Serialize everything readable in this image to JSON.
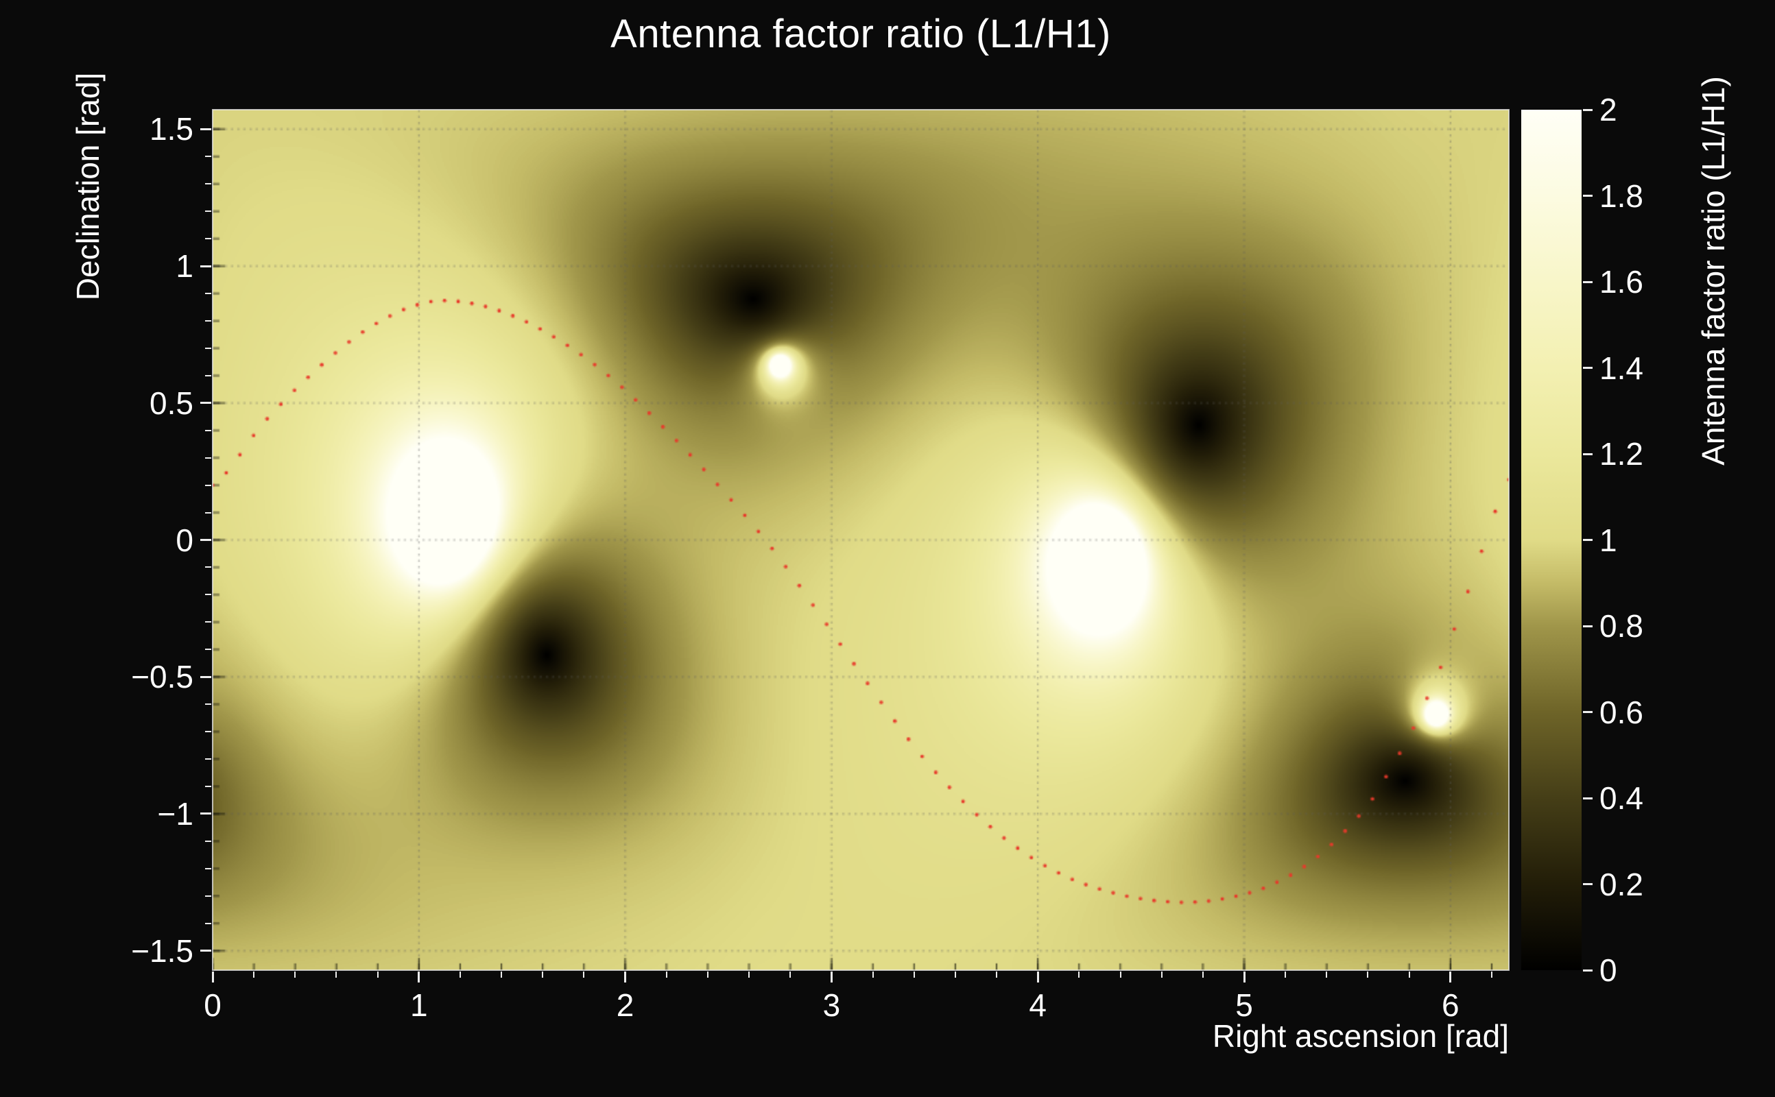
{
  "page": {
    "background": "#0a0a0a"
  },
  "chart_data": {
    "type": "heatmap",
    "title": "Antenna factor ratio (L1/H1)",
    "xlabel": "Right ascension [rad]",
    "ylabel": "Declination [rad]",
    "zlabel": "Antenna factor ratio (L1/H1)",
    "x_range": [
      0,
      6.2832
    ],
    "y_range": [
      -1.5708,
      1.5708
    ],
    "z_range": [
      0,
      2
    ],
    "x_ticks": {
      "values": [
        0,
        1,
        2,
        3,
        4,
        5,
        6
      ],
      "labels": [
        "0",
        "1",
        "2",
        "3",
        "4",
        "5",
        "6"
      ],
      "minor_step": 0.2
    },
    "y_ticks": {
      "values": [
        1.5,
        1,
        0.5,
        0,
        -0.5,
        -1,
        -1.5
      ],
      "labels": [
        "1.5",
        "1",
        "0.5",
        "0",
        "−0.5",
        "−1",
        "−1.5"
      ],
      "minor_step": 0.1
    },
    "z_ticks": {
      "values": [
        2,
        1.8,
        1.6,
        1.4,
        1.2,
        1,
        0.8,
        0.6,
        0.4,
        0.2,
        0
      ],
      "labels": [
        "2",
        "1.8",
        "1.6",
        "1.4",
        "1.2",
        "1",
        "0.8",
        "0.6",
        "0.4",
        "0.2",
        "0"
      ]
    },
    "grid": {
      "show": true,
      "color": "rgba(95,95,95,0.6)",
      "dash": [
        1.5,
        3
      ]
    },
    "colormap": [
      [
        0.0,
        "#000000"
      ],
      [
        0.1,
        "#221d08"
      ],
      [
        0.2,
        "#453e17"
      ],
      [
        0.3,
        "#6e6428"
      ],
      [
        0.4,
        "#a0964a"
      ],
      [
        0.45,
        "#c4bb67"
      ],
      [
        0.5,
        "#e0db87"
      ],
      [
        0.6,
        "#ebe89c"
      ],
      [
        0.7,
        "#f3f0b2"
      ],
      [
        0.8,
        "#f8f6c9"
      ],
      [
        0.9,
        "#fcfbe1"
      ],
      [
        1.0,
        "#fffff6"
      ]
    ],
    "field_model": {
      "background": 1.05,
      "dark_zeros": [
        {
          "ra": 1.62,
          "dec": -0.42,
          "w": 0.62
        },
        {
          "ra": 2.62,
          "dec": 0.88,
          "w": 0.55
        },
        {
          "ra": 4.78,
          "dec": 0.42,
          "w": 0.75
        },
        {
          "ra": 5.78,
          "dec": -0.88,
          "w": 0.5
        }
      ],
      "bright_poles": [
        {
          "ra": 1.15,
          "dec": 0.07,
          "w": 0.6
        },
        {
          "ra": 2.75,
          "dec": 0.64,
          "w": 0.17
        },
        {
          "ra": 4.32,
          "dec": -0.07,
          "w": 0.6
        },
        {
          "ra": 5.93,
          "dec": -0.64,
          "w": 0.17
        }
      ]
    },
    "track": {
      "color": "#e8392b",
      "dot_radius_px": 2.6,
      "n_dots": 96,
      "control_points": [
        [
          0.0,
          0.2
        ],
        [
          0.25,
          0.43
        ],
        [
          0.5,
          0.62
        ],
        [
          0.75,
          0.77
        ],
        [
          1.0,
          0.86
        ],
        [
          1.2,
          0.87
        ],
        [
          1.45,
          0.82
        ],
        [
          1.7,
          0.72
        ],
        [
          1.95,
          0.58
        ],
        [
          2.2,
          0.4
        ],
        [
          2.45,
          0.2
        ],
        [
          2.7,
          -0.02
        ],
        [
          2.95,
          -0.28
        ],
        [
          3.2,
          -0.55
        ],
        [
          3.45,
          -0.8
        ],
        [
          3.7,
          -1.0
        ],
        [
          3.95,
          -1.15
        ],
        [
          4.2,
          -1.25
        ],
        [
          4.5,
          -1.31
        ],
        [
          4.8,
          -1.32
        ],
        [
          5.1,
          -1.27
        ],
        [
          5.35,
          -1.16
        ],
        [
          5.6,
          -0.97
        ],
        [
          5.8,
          -0.72
        ],
        [
          5.95,
          -0.47
        ],
        [
          6.08,
          -0.2
        ],
        [
          6.18,
          0.02
        ],
        [
          6.28,
          0.22
        ]
      ]
    }
  }
}
